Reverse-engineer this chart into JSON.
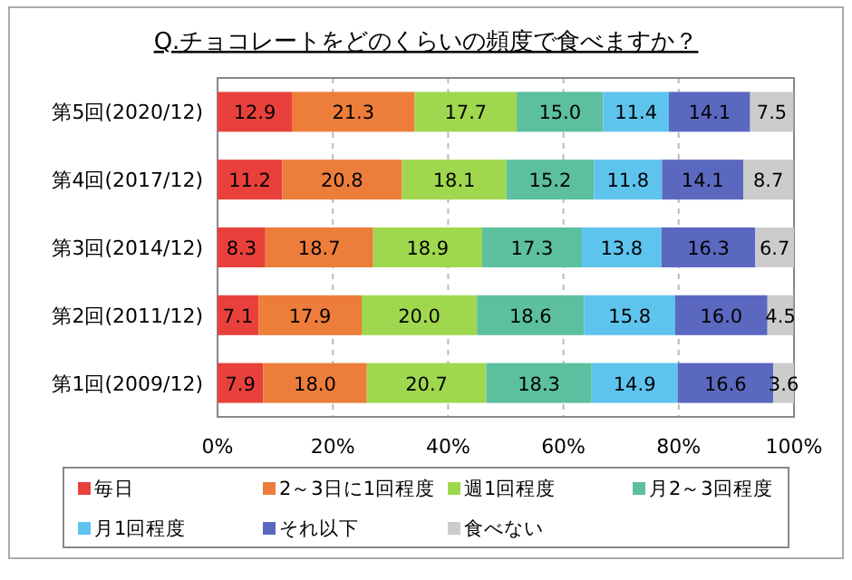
{
  "chart_data": {
    "type": "bar",
    "title": "Q.チョコレートをどのくらいの頻度で食べますか？",
    "orientation": "horizontal",
    "stacked": true,
    "grid": "x",
    "legend": "bottom",
    "categories": [
      "第5回(2020/12)",
      "第4回(2017/12)",
      "第3回(2014/12)",
      "第2回(2011/12)",
      "第1回(2009/12)"
    ],
    "series": [
      {
        "name": "毎日",
        "color": "#e8413c",
        "values": [
          12.9,
          11.2,
          8.3,
          7.1,
          7.9
        ],
        "value_labels": [
          "12.9",
          "11.2",
          "8.3",
          "7.1",
          "7.9"
        ]
      },
      {
        "name": "2～3日に1回程度",
        "color": "#ed7d3a",
        "values": [
          21.3,
          20.8,
          18.7,
          17.9,
          18.0
        ],
        "value_labels": [
          "21.3",
          "20.8",
          "18.7",
          "17.9",
          "18.0"
        ]
      },
      {
        "name": "週1回程度",
        "color": "#9fd84e",
        "values": [
          17.7,
          18.1,
          18.9,
          20.0,
          20.7
        ],
        "value_labels": [
          "17.7",
          "18.1",
          "18.9",
          "20.0",
          "20.7"
        ]
      },
      {
        "name": "月2～3回程度",
        "color": "#5cbfa0",
        "values": [
          15.0,
          15.2,
          17.3,
          18.6,
          18.3
        ],
        "value_labels": [
          "15.0",
          "15.2",
          "17.3",
          "18.6",
          "18.3"
        ]
      },
      {
        "name": "月1回程度",
        "color": "#5ec4ee",
        "values": [
          11.4,
          11.8,
          13.8,
          15.8,
          14.9
        ],
        "value_labels": [
          "11.4",
          "11.8",
          "13.8",
          "15.8",
          "14.9"
        ]
      },
      {
        "name": "それ以下",
        "color": "#5b68c0",
        "values": [
          14.1,
          14.1,
          16.3,
          16.0,
          16.6
        ],
        "value_labels": [
          "14.1",
          "14.1",
          "16.3",
          "16.0",
          "16.6"
        ]
      },
      {
        "name": "食べない",
        "color": "#cccccc",
        "values": [
          7.5,
          8.7,
          6.7,
          4.5,
          3.6
        ],
        "value_labels": [
          "7.5",
          "8.7",
          "6.7",
          "4.5",
          "3.6"
        ]
      }
    ],
    "xlim": [
      0,
      100
    ],
    "xticks": [
      {
        "value": 0,
        "label": "0%"
      },
      {
        "value": 20,
        "label": "20%"
      },
      {
        "value": 40,
        "label": "40%"
      },
      {
        "value": 60,
        "label": "60%"
      },
      {
        "value": 80,
        "label": "80%"
      },
      {
        "value": 100,
        "label": "100%"
      }
    ]
  }
}
